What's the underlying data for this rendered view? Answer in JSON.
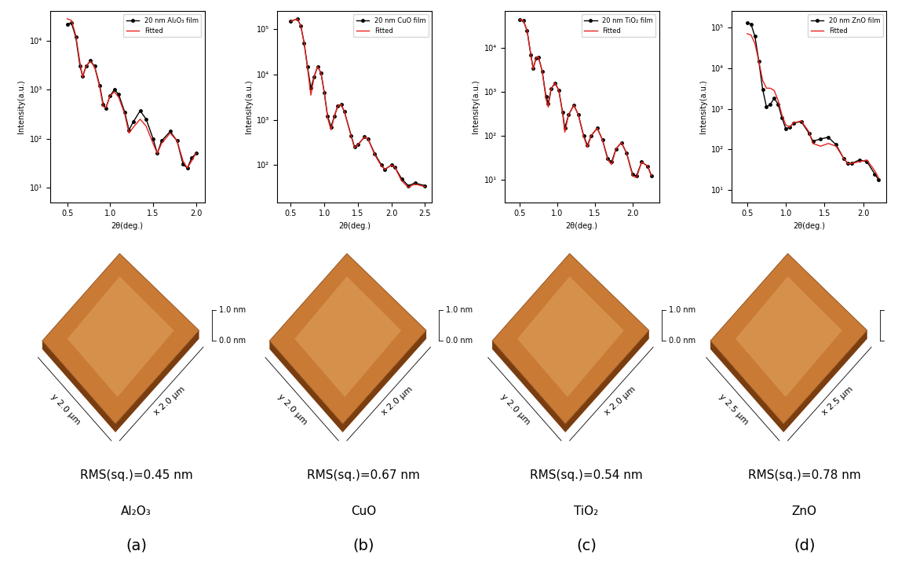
{
  "chart_data": [
    {
      "type": "line",
      "x_label": "2θ(deg.)",
      "y_label": "Intensity(a.u.)",
      "log": "y",
      "legend": "upper right",
      "xlim": [
        0.3,
        2.1
      ],
      "xticks": [
        0.5,
        1.0,
        1.5,
        2.0
      ],
      "ylim": [
        5,
        40000
      ],
      "yticks": [
        {
          "value": 10,
          "label": "10¹"
        },
        {
          "value": 100,
          "label": "10²"
        },
        {
          "value": 1000,
          "label": "10³"
        },
        {
          "value": 10000,
          "label": "10⁴"
        }
      ],
      "x": [
        0.5,
        0.55,
        0.6,
        0.65,
        0.68,
        0.72,
        0.77,
        0.82,
        0.88,
        0.92,
        0.95,
        1.0,
        1.05,
        1.1,
        1.17,
        1.22,
        1.27,
        1.35,
        1.42,
        1.5,
        1.55,
        1.6,
        1.7,
        1.78,
        1.85,
        1.9,
        1.95,
        2.0
      ],
      "series": [
        {
          "name": "20 nm Al₂O₃ film",
          "color": "#000000",
          "marker": "o",
          "line_style": "solid",
          "values": [
            22000,
            23000,
            12000,
            3000,
            1900,
            3000,
            3900,
            3000,
            1200,
            500,
            420,
            750,
            1000,
            800,
            350,
            150,
            220,
            370,
            250,
            100,
            50,
            90,
            140,
            90,
            30,
            25,
            40,
            50
          ]
        },
        {
          "name": "Fitted",
          "color": "#e8211c",
          "marker": "none",
          "line_style": "solid",
          "values": [
            28000,
            26000,
            13000,
            3500,
            1800,
            3000,
            3800,
            2900,
            1100,
            450,
            430,
            750,
            900,
            700,
            320,
            130,
            170,
            250,
            180,
            80,
            50,
            80,
            130,
            90,
            35,
            25,
            35,
            50
          ]
        }
      ]
    },
    {
      "type": "line",
      "x_label": "2θ(deg.)",
      "y_label": "Intensity(a.u.)",
      "log": "y",
      "legend": "upper right",
      "xlim": [
        0.3,
        2.6
      ],
      "xticks": [
        0.5,
        1.0,
        1.5,
        2.0,
        2.5
      ],
      "ylim": [
        15,
        250000
      ],
      "yticks": [
        {
          "value": 100,
          "label": "10²"
        },
        {
          "value": 1000,
          "label": "10³"
        },
        {
          "value": 10000,
          "label": "10⁴"
        },
        {
          "value": 100000,
          "label": "10⁵"
        }
      ],
      "x": [
        0.5,
        0.6,
        0.65,
        0.7,
        0.75,
        0.8,
        0.85,
        0.9,
        0.95,
        1.0,
        1.05,
        1.1,
        1.15,
        1.2,
        1.25,
        1.3,
        1.4,
        1.45,
        1.5,
        1.6,
        1.65,
        1.75,
        1.85,
        1.9,
        2.0,
        2.05,
        2.15,
        2.25,
        2.35,
        2.5
      ],
      "series": [
        {
          "name": "20 nm CuO film",
          "color": "#000000",
          "marker": "o",
          "line_style": "solid",
          "values": [
            150000,
            170000,
            120000,
            50000,
            15000,
            5000,
            9000,
            15000,
            11000,
            4000,
            1200,
            700,
            1200,
            2000,
            2200,
            1500,
            450,
            250,
            280,
            420,
            380,
            180,
            100,
            80,
            100,
            90,
            50,
            35,
            40,
            35
          ]
        },
        {
          "name": "Fitted",
          "color": "#e8211c",
          "marker": "none",
          "line_style": "solid",
          "values": [
            150000,
            170000,
            120000,
            50000,
            14000,
            3500,
            9000,
            15000,
            11000,
            4000,
            1100,
            600,
            1200,
            2000,
            2200,
            1500,
            430,
            240,
            280,
            420,
            380,
            170,
            95,
            80,
            100,
            90,
            45,
            32,
            38,
            33
          ]
        }
      ]
    },
    {
      "type": "line",
      "x_label": "2θ(deg.)",
      "y_label": "Intensity(a.u.)",
      "log": "y",
      "legend": "upper right",
      "xlim": [
        0.3,
        2.35
      ],
      "xticks": [
        0.5,
        1.0,
        1.5,
        2.0
      ],
      "ylim": [
        3,
        70000
      ],
      "yticks": [
        {
          "value": 10,
          "label": "10¹"
        },
        {
          "value": 100,
          "label": "10²"
        },
        {
          "value": 1000,
          "label": "10³"
        },
        {
          "value": 10000,
          "label": "10⁴"
        }
      ],
      "x": [
        0.5,
        0.55,
        0.6,
        0.65,
        0.68,
        0.72,
        0.75,
        0.8,
        0.85,
        0.88,
        0.92,
        0.97,
        1.02,
        1.07,
        1.1,
        1.15,
        1.22,
        1.28,
        1.35,
        1.4,
        1.45,
        1.53,
        1.6,
        1.67,
        1.72,
        1.78,
        1.85,
        1.92,
        2.0,
        2.05,
        2.12,
        2.2,
        2.25
      ],
      "series": [
        {
          "name": "20 nm TiO₂ film",
          "color": "#000000",
          "marker": "o",
          "line_style": "solid",
          "values": [
            45000,
            43000,
            25000,
            7000,
            3500,
            6000,
            6300,
            3000,
            800,
            550,
            1200,
            1600,
            1100,
            350,
            150,
            300,
            500,
            300,
            100,
            60,
            100,
            150,
            80,
            30,
            25,
            50,
            70,
            40,
            13,
            12,
            25,
            20,
            12
          ]
        },
        {
          "name": "Fitted",
          "color": "#e8211c",
          "marker": "none",
          "line_style": "solid",
          "values": [
            45000,
            43000,
            25000,
            7000,
            3300,
            6000,
            6300,
            3000,
            700,
            450,
            1200,
            1600,
            1100,
            330,
            120,
            300,
            500,
            300,
            95,
            55,
            100,
            150,
            80,
            28,
            22,
            50,
            70,
            40,
            12,
            11,
            25,
            20,
            12
          ]
        }
      ]
    },
    {
      "type": "line",
      "x_label": "2θ(deg.)",
      "y_label": "Intensity(a.u.)",
      "log": "y",
      "legend": "upper right",
      "xlim": [
        0.3,
        2.3
      ],
      "xticks": [
        0.5,
        1.0,
        1.5,
        2.0
      ],
      "ylim": [
        5,
        250000
      ],
      "yticks": [
        {
          "value": 10,
          "label": "10¹"
        },
        {
          "value": 100,
          "label": "10²"
        },
        {
          "value": 1000,
          "label": "10³"
        },
        {
          "value": 10000,
          "label": "10⁴"
        },
        {
          "value": 100000,
          "label": "10⁵"
        }
      ],
      "x": [
        0.5,
        0.55,
        0.6,
        0.65,
        0.7,
        0.75,
        0.8,
        0.85,
        0.9,
        0.95,
        1.0,
        1.05,
        1.1,
        1.2,
        1.3,
        1.35,
        1.45,
        1.55,
        1.65,
        1.75,
        1.8,
        1.85,
        1.95,
        2.05,
        2.15,
        2.2
      ],
      "series": [
        {
          "name": "20 nm ZnO film",
          "color": "#000000",
          "marker": "o",
          "line_style": "solid",
          "values": [
            130000,
            120000,
            60000,
            15000,
            3000,
            1100,
            1300,
            1800,
            1300,
            600,
            320,
            350,
            450,
            480,
            250,
            160,
            180,
            200,
            130,
            60,
            45,
            45,
            55,
            50,
            25,
            18
          ]
        },
        {
          "name": "Fitted",
          "color": "#e8211c",
          "marker": "none",
          "line_style": "solid",
          "values": [
            70000,
            65000,
            40000,
            15000,
            5000,
            3200,
            3200,
            2800,
            1600,
            700,
            400,
            350,
            450,
            500,
            270,
            140,
            120,
            140,
            120,
            60,
            45,
            45,
            50,
            55,
            30,
            20
          ]
        }
      ]
    }
  ],
  "afm_panels": [
    {
      "z_labels": [
        "1.0 nm",
        "0.0 nm"
      ],
      "y_label": "y 2.0 µm",
      "x_label": "x 2.0 µm",
      "rms": "RMS(sq.)=0.45 nm",
      "material": "Al₂O₃",
      "panel": "(a)"
    },
    {
      "z_labels": [
        "1.0 nm",
        "0.0 nm"
      ],
      "y_label": "y 2.0 µm",
      "x_label": "x 2.0 µm",
      "rms": "RMS(sq.)=0.67 nm",
      "material": "CuO",
      "panel": "(b)"
    },
    {
      "z_labels": [
        "1.0 nm",
        "0.0 nm"
      ],
      "y_label": "y 2.0 µm",
      "x_label": "x 2.0 µm",
      "rms": "RMS(sq.)=0.54 nm",
      "material": "TiO₂",
      "panel": "(c)"
    },
    {
      "z_labels": [],
      "y_label": "y 2.5 µm",
      "x_label": "x 2.5 µm",
      "rms": "RMS(sq.)=0.78 nm",
      "material": "ZnO",
      "panel": "(d)"
    }
  ]
}
